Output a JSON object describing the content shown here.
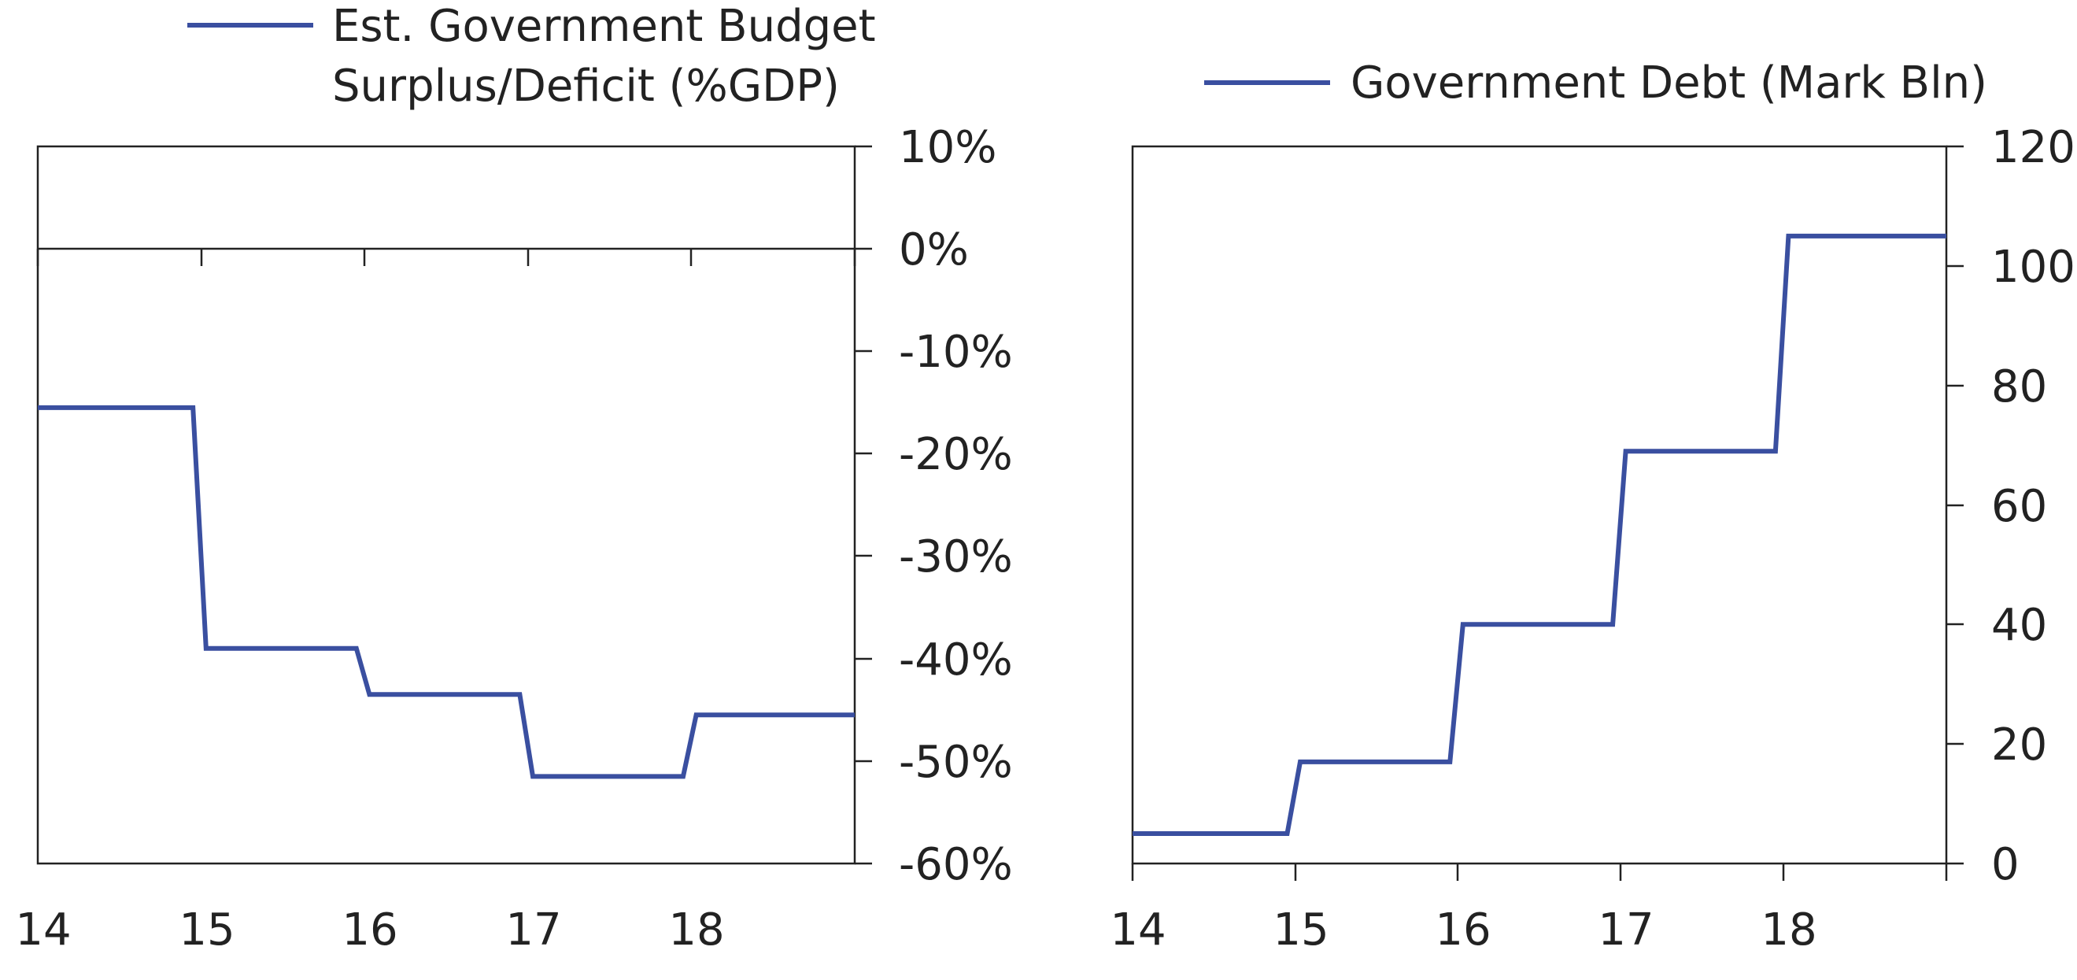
{
  "colors": {
    "series": "#3a4fa0",
    "axis": "#222222",
    "background": "#ffffff"
  },
  "chart_data": [
    {
      "type": "line",
      "step": true,
      "legend": {
        "entries": [
          "Est. Government Budget Surplus/Deficit (%GDP)"
        ],
        "lines": [
          "Est. Government Budget",
          "Surplus/Deficit (%GDP)"
        ],
        "placement": "top"
      },
      "x_tick_labels": [
        "14",
        "15",
        "16",
        "17",
        "18"
      ],
      "y_tick_labels": [
        "10%",
        "0%",
        "-10%",
        "-20%",
        "-30%",
        "-40%",
        "-50%",
        "-60%"
      ],
      "y_axis_side": "right",
      "xlim": [
        2014,
        2019
      ],
      "ylim": [
        -60,
        10
      ],
      "zero_line": true,
      "series": [
        {
          "name": "Est. Government Budget Surplus/Deficit (%GDP)",
          "x": [
            2014,
            2014.95,
            2015.03,
            2015.95,
            2016.03,
            2016.95,
            2017.03,
            2017.95,
            2018.03,
            2019
          ],
          "values": [
            -15.5,
            -15.5,
            -39,
            -39,
            -43.5,
            -43.5,
            -51.5,
            -51.5,
            -45.5,
            -45.5
          ]
        }
      ]
    },
    {
      "type": "line",
      "step": true,
      "legend": {
        "entries": [
          "Government Debt (Mark Bln)"
        ],
        "lines": [
          "Government Debt (Mark Bln)"
        ],
        "placement": "top"
      },
      "x_tick_labels": [
        "14",
        "15",
        "16",
        "17",
        "18"
      ],
      "y_tick_labels": [
        "120",
        "100",
        "80",
        "60",
        "40",
        "20",
        "0"
      ],
      "y_axis_side": "right",
      "xlim": [
        2014,
        2019
      ],
      "ylim": [
        0,
        120
      ],
      "zero_line": false,
      "series": [
        {
          "name": "Government Debt (Mark Bln)",
          "x": [
            2014,
            2014.95,
            2015.03,
            2015.95,
            2016.03,
            2016.95,
            2017.03,
            2017.95,
            2018.03,
            2019
          ],
          "values": [
            5,
            5,
            17,
            17,
            40,
            40,
            69,
            69,
            105,
            105
          ]
        }
      ]
    }
  ]
}
